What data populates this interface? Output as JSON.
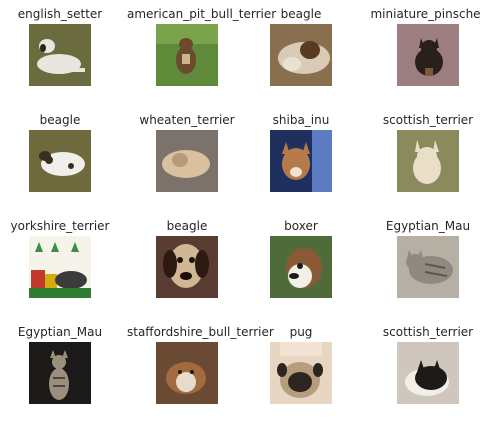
{
  "tiles": [
    {
      "label": "english_setter",
      "scene": "setter",
      "bg": "#6a6b3e",
      "fg": "#e8e6df",
      "accent": "#2a2418"
    },
    {
      "label": "american_pit_bull_terrier",
      "scene": "pitbull",
      "bg": "#5f8a3a",
      "fg": "#6b4a2e",
      "accent": "#c9b58f"
    },
    {
      "label": "beagle",
      "scene": "beagle-lying",
      "bg": "#8a6f4e",
      "fg": "#d9cbb6",
      "accent": "#5a3a22"
    },
    {
      "label": "miniature_pinscher",
      "scene": "pinscher",
      "bg": "#9c7e80",
      "fg": "#2b1f1a",
      "accent": "#7b5a3a"
    },
    {
      "label": "beagle",
      "scene": "beagle-yard",
      "bg": "#6f6a3e",
      "fg": "#f1efe9",
      "accent": "#3c2c1f"
    },
    {
      "label": "wheaten_terrier",
      "scene": "wheaten",
      "bg": "#7b726b",
      "fg": "#d9c1a0",
      "accent": "#b89a78"
    },
    {
      "label": "shiba_inu",
      "scene": "shiba",
      "bg": "#20305e",
      "fg": "#b57a4a",
      "accent": "#5b7cc2"
    },
    {
      "label": "scottish_terrier",
      "scene": "scottie-white",
      "bg": "#8a8a5c",
      "fg": "#e9dfc9",
      "accent": "#b7a06e"
    },
    {
      "label": "yorkshire_terrier",
      "scene": "yorkie",
      "bg": "#f5f3ea",
      "fg": "#3b3b3b",
      "accent": "#c0392b"
    },
    {
      "label": "beagle",
      "scene": "beagle-face",
      "bg": "#5a3d32",
      "fg": "#d2b796",
      "accent": "#2c1a12"
    },
    {
      "label": "boxer",
      "scene": "boxer",
      "bg": "#4f6b3a",
      "fg": "#f2efe6",
      "accent": "#8a5a36"
    },
    {
      "label": "Egyptian_Mau",
      "scene": "mau-lying",
      "bg": "#b6b0a4",
      "fg": "#8e8a80",
      "accent": "#5c5850"
    },
    {
      "label": "Egyptian_Mau",
      "scene": "mau-sitting",
      "bg": "#1b1a18",
      "fg": "#9a8f7c",
      "accent": "#4b463d"
    },
    {
      "label": "staffordshire_bull_terrier",
      "scene": "staffy",
      "bg": "#6b4a34",
      "fg": "#e7dccb",
      "accent": "#a36a3f"
    },
    {
      "label": "pug",
      "scene": "pug",
      "bg": "#e7d6c2",
      "fg": "#b59d7d",
      "accent": "#2d2520"
    },
    {
      "label": "scottish_terrier",
      "scene": "scottie-black",
      "bg": "#cfc7bd",
      "fg": "#1d1a17",
      "accent": "#f2efe9"
    }
  ]
}
